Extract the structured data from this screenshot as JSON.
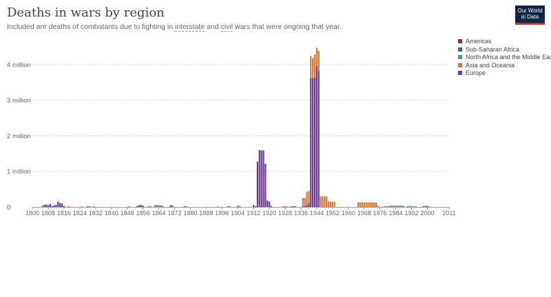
{
  "header": {
    "title": "Deaths in wars by region",
    "subtitle_pre": "Included are deaths of combatants due to fighting in ",
    "subtitle_link1": "interstate",
    "subtitle_mid": " and ",
    "subtitle_link2": "civil",
    "subtitle_post": " wars that were ongoing that year.",
    "logo_line1": "Our World",
    "logo_line2": "in Data"
  },
  "colors": {
    "Americas": "#883039",
    "Sub-Saharan Africa": "#286bbb",
    "North Africa and the Middle East": "#4c9a85",
    "Asia and Oceania": "#d6793b",
    "Europe": "#6d3e91",
    "grid": "#dddddd",
    "axis": "#999999",
    "text": "#666666"
  },
  "chart_data": {
    "type": "bar",
    "stacked": true,
    "title": "Deaths in wars by region",
    "xlabel": "",
    "ylabel": "",
    "xlim": [
      1800,
      2011
    ],
    "ylim": [
      0,
      4500000
    ],
    "grid": true,
    "legend_position": "right",
    "yticks": [
      {
        "value": 0,
        "label": "0"
      },
      {
        "value": 1000000,
        "label": "1 million"
      },
      {
        "value": 2000000,
        "label": "2 million"
      },
      {
        "value": 3000000,
        "label": "3 million"
      },
      {
        "value": 4000000,
        "label": "4 million"
      }
    ],
    "xticks": [
      {
        "value": 1800,
        "label": "1800"
      },
      {
        "value": 1808,
        "label": "1808"
      },
      {
        "value": 1816,
        "label": "1816"
      },
      {
        "value": 1824,
        "label": "1824"
      },
      {
        "value": 1832,
        "label": "1832"
      },
      {
        "value": 1840,
        "label": "1840"
      },
      {
        "value": 1848,
        "label": "1848"
      },
      {
        "value": 1856,
        "label": "1856"
      },
      {
        "value": 1864,
        "label": "1864"
      },
      {
        "value": 1872,
        "label": "1872"
      },
      {
        "value": 1880,
        "label": "1880"
      },
      {
        "value": 1888,
        "label": "1888"
      },
      {
        "value": 1896,
        "label": "1896"
      },
      {
        "value": 1904,
        "label": "1904"
      },
      {
        "value": 1912,
        "label": "1912"
      },
      {
        "value": 1920,
        "label": "1920"
      },
      {
        "value": 1928,
        "label": "1928"
      },
      {
        "value": 1936,
        "label": "1936"
      },
      {
        "value": 1944,
        "label": "1944"
      },
      {
        "value": 1952,
        "label": "1952"
      },
      {
        "value": 1960,
        "label": "1960"
      },
      {
        "value": 1968,
        "label": "1968"
      },
      {
        "value": 1976,
        "label": "1976"
      },
      {
        "value": 1984,
        "label": "1984"
      },
      {
        "value": 1992,
        "label": "1992"
      },
      {
        "value": 2000,
        "label": "2000"
      },
      {
        "value": 2011,
        "label": "2011"
      }
    ],
    "series_order": [
      "Europe",
      "Asia and Oceania",
      "North Africa and the Middle East",
      "Sub-Saharan Africa",
      "Americas"
    ],
    "legend": [
      "Americas",
      "Sub-Saharan Africa",
      "North Africa and the Middle East",
      "Asia and Oceania",
      "Europe"
    ],
    "data": [
      {
        "year": 1805,
        "Europe": 30000
      },
      {
        "year": 1806,
        "Europe": 60000
      },
      {
        "year": 1807,
        "Europe": 70000
      },
      {
        "year": 1808,
        "Europe": 50000
      },
      {
        "year": 1809,
        "Europe": 80000
      },
      {
        "year": 1810,
        "Europe": 25000
      },
      {
        "year": 1811,
        "Europe": 40000
      },
      {
        "year": 1812,
        "Europe": 60000
      },
      {
        "year": 1813,
        "Europe": 150000
      },
      {
        "year": 1814,
        "Europe": 110000
      },
      {
        "year": 1815,
        "Europe": 100000
      },
      {
        "year": 1816,
        "Europe": 30000
      },
      {
        "year": 1818,
        "Asia and Oceania": 15000
      },
      {
        "year": 1819,
        "Asia and Oceania": 10000
      },
      {
        "year": 1825,
        "Asia and Oceania": 12000
      },
      {
        "year": 1828,
        "Europe": 20000
      },
      {
        "year": 1829,
        "Europe": 12000
      },
      {
        "year": 1831,
        "Europe": 15000
      },
      {
        "year": 1849,
        "Europe": 10000
      },
      {
        "year": 1853,
        "Europe": 30000
      },
      {
        "year": 1854,
        "Europe": 50000
      },
      {
        "year": 1855,
        "Europe": 60000
      },
      {
        "year": 1856,
        "Europe": 40000
      },
      {
        "year": 1859,
        "Europe": 20000
      },
      {
        "year": 1860,
        "Asia and Oceania": 15000
      },
      {
        "year": 1862,
        "Asia and Oceania": 20000,
        "Americas": 20000
      },
      {
        "year": 1863,
        "Asia and Oceania": 20000,
        "Americas": 30000
      },
      {
        "year": 1864,
        "Asia and Oceania": 15000,
        "Americas": 30000
      },
      {
        "year": 1865,
        "Asia and Oceania": 20000,
        "Americas": 20000
      },
      {
        "year": 1866,
        "Europe": 25000
      },
      {
        "year": 1870,
        "Europe": 50000
      },
      {
        "year": 1871,
        "Europe": 40000
      },
      {
        "year": 1877,
        "Europe": 20000
      },
      {
        "year": 1878,
        "Europe": 10000
      },
      {
        "year": 1894,
        "Asia and Oceania": 12000
      },
      {
        "year": 1899,
        "Americas": 10000
      },
      {
        "year": 1900,
        "Americas": 10000
      },
      {
        "year": 1904,
        "Asia and Oceania": 40000
      },
      {
        "year": 1905,
        "Asia and Oceania": 30000
      },
      {
        "year": 1912,
        "Europe": 50000
      },
      {
        "year": 1913,
        "Europe": 20000
      },
      {
        "year": 1914,
        "Europe": 1270000
      },
      {
        "year": 1915,
        "Europe": 1600000
      },
      {
        "year": 1916,
        "Europe": 1590000
      },
      {
        "year": 1917,
        "Europe": 1590000
      },
      {
        "year": 1918,
        "Europe": 1210000
      },
      {
        "year": 1919,
        "Europe": 180000
      },
      {
        "year": 1920,
        "Europe": 150000
      },
      {
        "year": 1921,
        "Europe": 30000
      },
      {
        "year": 1927,
        "Asia and Oceania": 20000
      },
      {
        "year": 1928,
        "Asia and Oceania": 20000
      },
      {
        "year": 1929,
        "Asia and Oceania": 15000
      },
      {
        "year": 1931,
        "Asia and Oceania": 20000
      },
      {
        "year": 1932,
        "Americas": 20000
      },
      {
        "year": 1933,
        "Americas": 20000
      },
      {
        "year": 1937,
        "Europe": 20000,
        "Asia and Oceania": 230000
      },
      {
        "year": 1938,
        "Europe": 30000,
        "Asia and Oceania": 220000
      },
      {
        "year": 1939,
        "Europe": 50000,
        "Asia and Oceania": 370000
      },
      {
        "year": 1940,
        "Europe": 100000,
        "Asia and Oceania": 350000
      },
      {
        "year": 1941,
        "Europe": 3620000,
        "Asia and Oceania": 620000
      },
      {
        "year": 1942,
        "Europe": 3620000,
        "Asia and Oceania": 560000
      },
      {
        "year": 1943,
        "Europe": 3640000,
        "Asia and Oceania": 640000
      },
      {
        "year": 1944,
        "Europe": 3960000,
        "Asia and Oceania": 510000
      },
      {
        "year": 1945,
        "Europe": 3820000,
        "Asia and Oceania": 560000
      },
      {
        "year": 1946,
        "Asia and Oceania": 300000
      },
      {
        "year": 1947,
        "Asia and Oceania": 300000
      },
      {
        "year": 1948,
        "Asia and Oceania": 300000
      },
      {
        "year": 1949,
        "Asia and Oceania": 300000
      },
      {
        "year": 1950,
        "Asia and Oceania": 150000
      },
      {
        "year": 1951,
        "Asia and Oceania": 150000
      },
      {
        "year": 1952,
        "Asia and Oceania": 150000
      },
      {
        "year": 1953,
        "Asia and Oceania": 150000
      },
      {
        "year": 1965,
        "Asia and Oceania": 130000
      },
      {
        "year": 1966,
        "Asia and Oceania": 130000
      },
      {
        "year": 1967,
        "Asia and Oceania": 130000
      },
      {
        "year": 1968,
        "Asia and Oceania": 130000
      },
      {
        "year": 1969,
        "Asia and Oceania": 130000
      },
      {
        "year": 1970,
        "Asia and Oceania": 130000
      },
      {
        "year": 1971,
        "Asia and Oceania": 130000
      },
      {
        "year": 1972,
        "Asia and Oceania": 130000
      },
      {
        "year": 1973,
        "Asia and Oceania": 125000
      },
      {
        "year": 1974,
        "Asia and Oceania": 125000
      },
      {
        "year": 1975,
        "Asia and Oceania": 30000
      },
      {
        "year": 1978,
        "Asia and Oceania": 15000
      },
      {
        "year": 1979,
        "Asia and Oceania": 20000
      },
      {
        "year": 1980,
        "North Africa and the Middle East": 20000
      },
      {
        "year": 1981,
        "North Africa and the Middle East": 30000
      },
      {
        "year": 1982,
        "North Africa and the Middle East": 40000
      },
      {
        "year": 1983,
        "North Africa and the Middle East": 40000
      },
      {
        "year": 1984,
        "North Africa and the Middle East": 40000
      },
      {
        "year": 1985,
        "North Africa and the Middle East": 40000
      },
      {
        "year": 1986,
        "North Africa and the Middle East": 40000
      },
      {
        "year": 1987,
        "North Africa and the Middle East": 40000
      },
      {
        "year": 1988,
        "North Africa and the Middle East": 30000
      },
      {
        "year": 1990,
        "Sub-Saharan Africa": 20000
      },
      {
        "year": 1991,
        "North Africa and the Middle East": 30000
      },
      {
        "year": 1992,
        "Sub-Saharan Africa": 15000
      },
      {
        "year": 1993,
        "Sub-Saharan Africa": 15000
      },
      {
        "year": 1994,
        "Sub-Saharan Africa": 15000
      },
      {
        "year": 1998,
        "Sub-Saharan Africa": 20000
      },
      {
        "year": 1999,
        "Sub-Saharan Africa": 30000
      },
      {
        "year": 2000,
        "Sub-Saharan Africa": 30000
      },
      {
        "year": 2001,
        "Asia and Oceania": 10000
      }
    ]
  }
}
